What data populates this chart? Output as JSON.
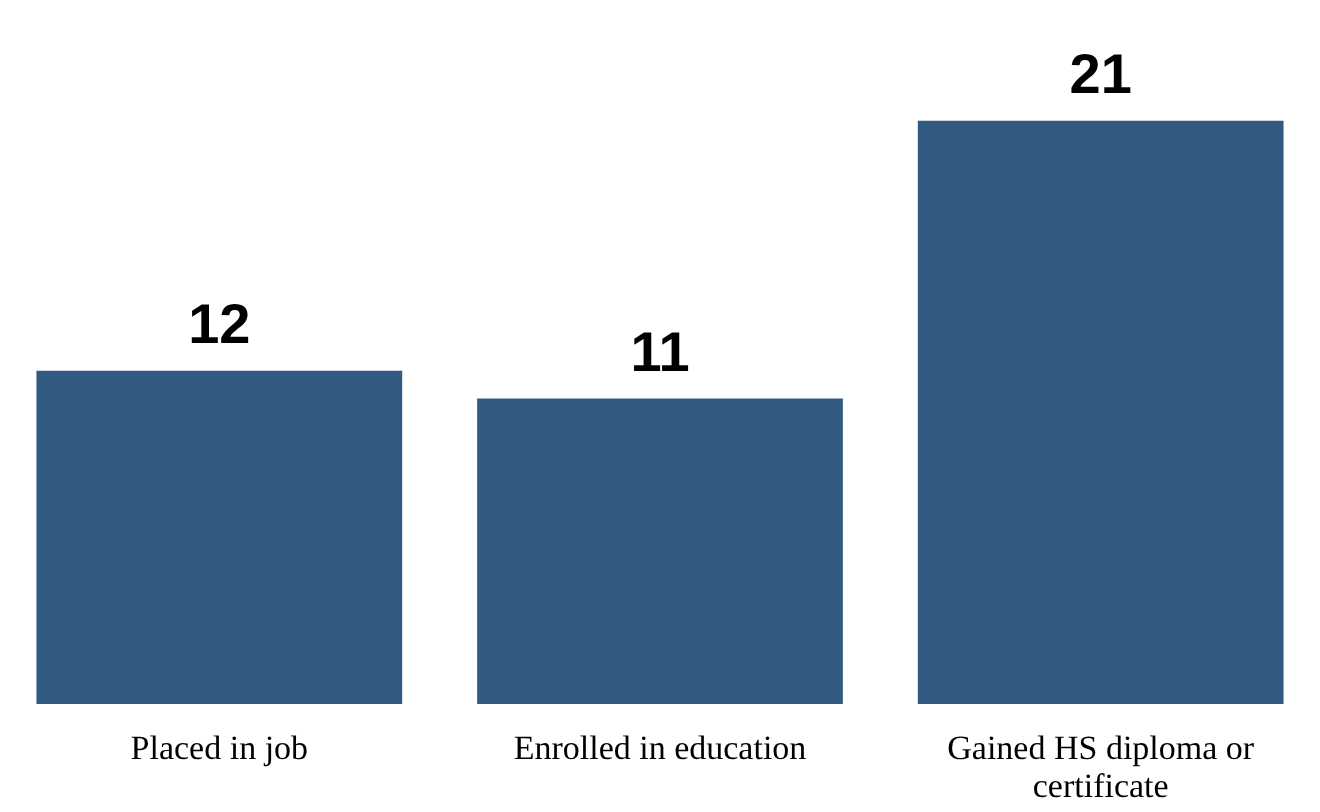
{
  "chart_data": {
    "type": "bar",
    "categories": [
      "Placed in job",
      "Enrolled in education",
      "Gained HS diploma or certificate"
    ],
    "values": [
      12,
      11,
      21
    ],
    "color": "#335a80",
    "data_labels": true,
    "grid": false
  }
}
